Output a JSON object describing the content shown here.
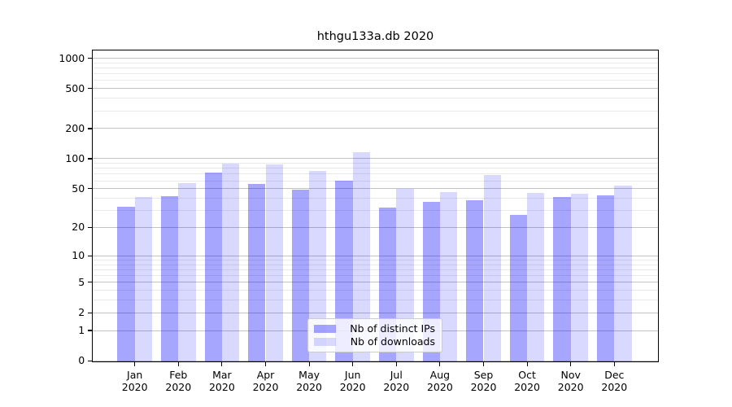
{
  "chart_data": {
    "type": "bar",
    "title": "hthgu133a.db 2020",
    "categories": [
      "Jan 2020",
      "Feb 2020",
      "Mar 2020",
      "Apr 2020",
      "May 2020",
      "Jun 2020",
      "Jul 2020",
      "Aug 2020",
      "Sep 2020",
      "Oct 2020",
      "Nov 2020",
      "Dec 2020"
    ],
    "series": [
      {
        "name": "Nb of distinct IPs",
        "color": "rgba(0,0,255,0.35)",
        "values": [
          33,
          42,
          72,
          56,
          49,
          60,
          32,
          37,
          38,
          27,
          41,
          43
        ]
      },
      {
        "name": "Nb of downloads",
        "color": "rgba(0,0,255,0.15)",
        "values": [
          41,
          57,
          90,
          88,
          75,
          116,
          50,
          46,
          68,
          45,
          44,
          54
        ]
      }
    ],
    "xlabel": "",
    "ylabel": "",
    "y_scale": "log(1+y)",
    "ylim": [
      0,
      1240
    ],
    "y_ticks": [
      0,
      1,
      2,
      5,
      10,
      20,
      50,
      100,
      200,
      500,
      1000
    ],
    "y_minor_ticks": [
      3,
      4,
      6,
      7,
      8,
      9,
      30,
      40,
      60,
      70,
      80,
      90,
      300,
      400,
      600,
      700,
      800,
      900
    ],
    "grid": "both",
    "legend_position": "lower center",
    "colors": {
      "bar_distinct_ips_rendered": "#a6a6ff",
      "bar_downloads_rendered": "#dbdbff",
      "major_grid": "#c3c3c3",
      "minor_grid": "#e9e9e9",
      "axis": "#000000",
      "legend_border": "#cccccc",
      "background": "#ffffff"
    }
  }
}
